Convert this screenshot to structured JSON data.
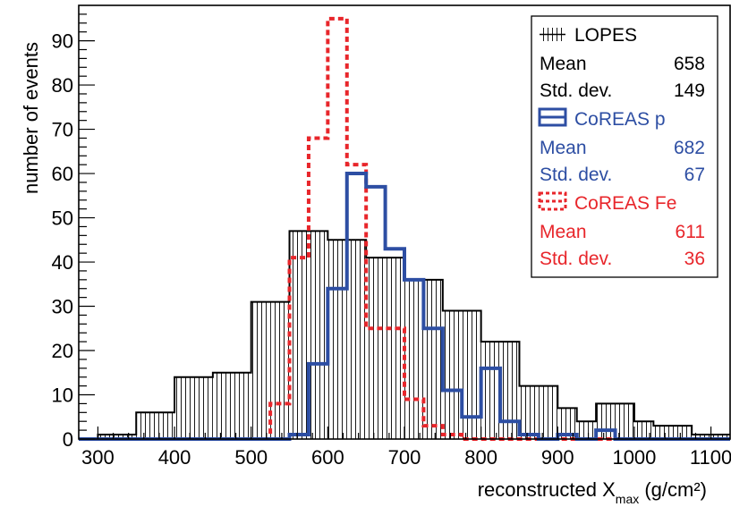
{
  "chart_data": {
    "type": "histogram",
    "xlabel_main": "reconstructed X",
    "xlabel_sub": "max",
    "xlabel_unit": " (g/cm²)",
    "ylabel": "number of events",
    "xlim": [
      275,
      1125
    ],
    "ylim": [
      0,
      98
    ],
    "bin_width": 25,
    "x_ticks": [
      300,
      400,
      500,
      600,
      700,
      800,
      900,
      1000,
      1100
    ],
    "x_tick_labels": [
      "300",
      "400",
      "500",
      "600",
      "700",
      "800",
      "900",
      "1000",
      "1100"
    ],
    "y_ticks": [
      0,
      10,
      20,
      30,
      40,
      50,
      60,
      70,
      80,
      90
    ],
    "y_tick_labels": [
      "0",
      "10",
      "20",
      "30",
      "40",
      "50",
      "60",
      "70",
      "80",
      "90"
    ],
    "series": [
      {
        "name": "LOPES",
        "color": "#000000",
        "style": "hatched",
        "bin_starts": [
          275,
          300,
          325,
          350,
          375,
          400,
          425,
          450,
          475,
          500,
          525,
          550,
          575,
          600,
          625,
          650,
          675,
          700,
          725,
          750,
          775,
          800,
          825,
          850,
          875,
          900,
          925,
          950,
          975,
          1000,
          1025,
          1050,
          1075,
          1100
        ],
        "values": [
          0,
          1,
          1,
          6,
          6,
          14,
          14,
          15,
          15,
          31,
          31,
          47,
          47,
          45,
          45,
          41,
          41,
          36,
          36,
          29,
          29,
          22,
          22,
          12,
          12,
          7,
          4,
          8,
          8,
          4,
          3,
          3,
          1,
          1
        ]
      },
      {
        "name": "CoREAS p",
        "color": "#2d4ea3",
        "style": "solid",
        "bin_starts": [
          275,
          300,
          325,
          350,
          375,
          400,
          425,
          450,
          475,
          500,
          525,
          550,
          575,
          600,
          625,
          650,
          675,
          700,
          725,
          750,
          775,
          800,
          825,
          850,
          875,
          900,
          925,
          950,
          975,
          1000,
          1025,
          1050,
          1075,
          1100
        ],
        "values": [
          0,
          0,
          0,
          0,
          0,
          0,
          0,
          0,
          0,
          0,
          0,
          1,
          17,
          34,
          60,
          57,
          43,
          36,
          25,
          11,
          5,
          16,
          4,
          1,
          0,
          1,
          0,
          2,
          0,
          0,
          0,
          0,
          0,
          0
        ]
      },
      {
        "name": "CoREAS Fe",
        "color": "#e8262b",
        "style": "dashed",
        "bin_starts": [
          275,
          300,
          325,
          350,
          375,
          400,
          425,
          450,
          475,
          500,
          525,
          550,
          575,
          600,
          625,
          650,
          675,
          700,
          725,
          750,
          775,
          800,
          825,
          850,
          875,
          900,
          925,
          950,
          975,
          1000,
          1025,
          1050,
          1075,
          1100
        ],
        "values": [
          0,
          0,
          0,
          0,
          0,
          0,
          0,
          0,
          0,
          0,
          8,
          41,
          68,
          95,
          62,
          25,
          25,
          9,
          3,
          1,
          0,
          0,
          0,
          0,
          0,
          0,
          0,
          0,
          0,
          0,
          0,
          0,
          0,
          0
        ]
      }
    ],
    "legend": {
      "placement": "top-right",
      "entries": [
        {
          "label": "LOPES",
          "color": "#000000",
          "mean_label": "Mean",
          "mean": "658",
          "std_label": "Std. dev.",
          "std": "149"
        },
        {
          "label": "CoREAS p",
          "color": "#2d4ea3",
          "mean_label": "Mean",
          "mean": "682",
          "std_label": "Std. dev.",
          "std": "67"
        },
        {
          "label": "CoREAS Fe",
          "color": "#e8262b",
          "mean_label": "Mean",
          "mean": "611",
          "std_label": "Std. dev.",
          "std": "36"
        }
      ]
    },
    "grid": false
  }
}
